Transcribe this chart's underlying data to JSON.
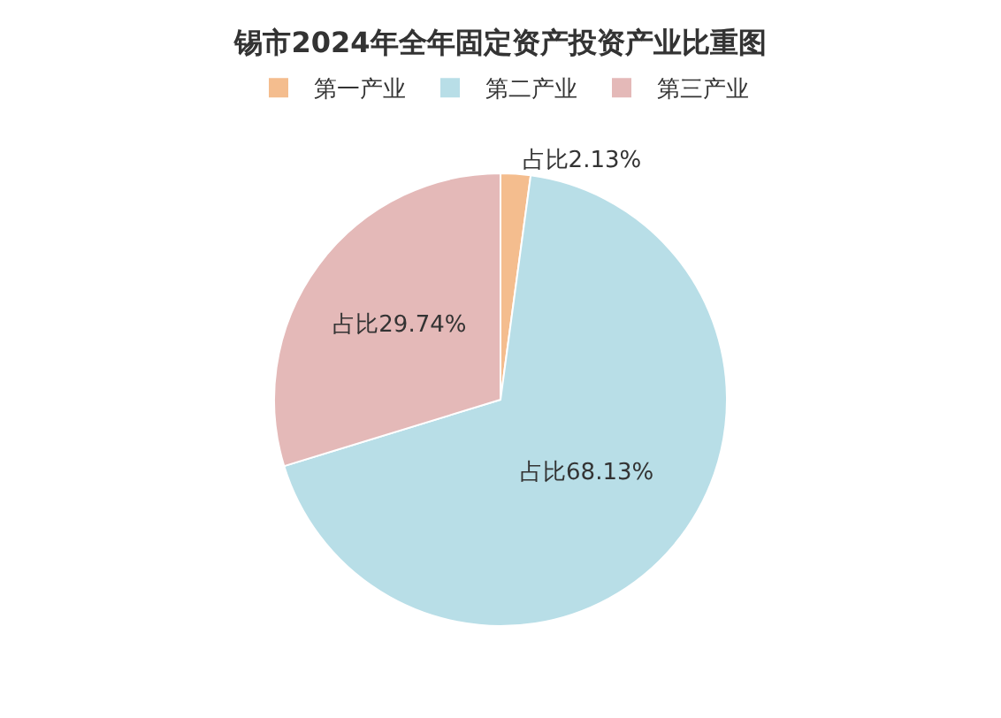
{
  "chart_data": {
    "type": "pie",
    "title": "锡市2024年全年固定资产投资产业比重图",
    "categories": [
      "第一产业",
      "第二产业",
      "第三产业"
    ],
    "values": [
      2.13,
      68.13,
      29.74
    ],
    "colors": [
      "#f4bd8e",
      "#b8dee7",
      "#e4b9b8"
    ],
    "value_labels": [
      "占比2.13%",
      "占比68.13%",
      "占比29.74%"
    ],
    "legend": "top"
  }
}
